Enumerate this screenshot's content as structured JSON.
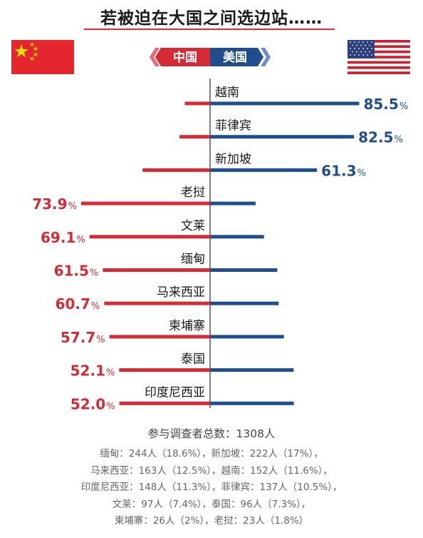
{
  "title": "若被迫在大国之间选边站……",
  "colors": {
    "china": "#d42b35",
    "usa": "#1f4e8f",
    "china_light": "#e94f58",
    "usa_light": "#3f6fb0"
  },
  "legend": {
    "china": "中国",
    "usa": "美国"
  },
  "chart_data": {
    "type": "bar",
    "orientation": "horizontal-diverging",
    "title": "若被迫在大国之间选边站……",
    "series": [
      {
        "name": "中国",
        "side": "left"
      },
      {
        "name": "美国",
        "side": "right"
      }
    ],
    "unit": "%",
    "rows": [
      {
        "country": "越南",
        "china": 14.5,
        "usa": 85.5,
        "label": "85.5",
        "label_side": "usa"
      },
      {
        "country": "菲律宾",
        "china": 17.5,
        "usa": 82.5,
        "label": "82.5",
        "label_side": "usa"
      },
      {
        "country": "新加坡",
        "china": 38.7,
        "usa": 61.3,
        "label": "61.3",
        "label_side": "usa"
      },
      {
        "country": "老挝",
        "china": 73.9,
        "usa": 26.1,
        "label": "73.9",
        "label_side": "china"
      },
      {
        "country": "文莱",
        "china": 69.1,
        "usa": 30.9,
        "label": "69.1",
        "label_side": "china"
      },
      {
        "country": "缅甸",
        "china": 61.5,
        "usa": 38.5,
        "label": "61.5",
        "label_side": "china"
      },
      {
        "country": "马来西亚",
        "china": 60.7,
        "usa": 39.3,
        "label": "60.7",
        "label_side": "china"
      },
      {
        "country": "柬埔寨",
        "china": 57.7,
        "usa": 42.3,
        "label": "57.7",
        "label_side": "china"
      },
      {
        "country": "泰国",
        "china": 52.1,
        "usa": 47.9,
        "label": "52.1",
        "label_side": "china"
      },
      {
        "country": "印度尼西亚",
        "china": 52.0,
        "usa": 48.0,
        "label": "52.0",
        "label_side": "china"
      }
    ]
  },
  "footer": {
    "head": "参与调查者总数：1308人",
    "lines": [
      "缅甸：244人（18.6%），新加坡：222人（17%），",
      "马来西亚：163人（12.5%），越南：152人（11.6%），",
      "印度尼西亚：148人（11.3%），菲律宾：137人（10.5%），",
      "文莱：97人（7.4%），泰国：96人（7.3%），",
      "柬埔寨：26人（2%），老挝：23人（1.8%）"
    ]
  }
}
